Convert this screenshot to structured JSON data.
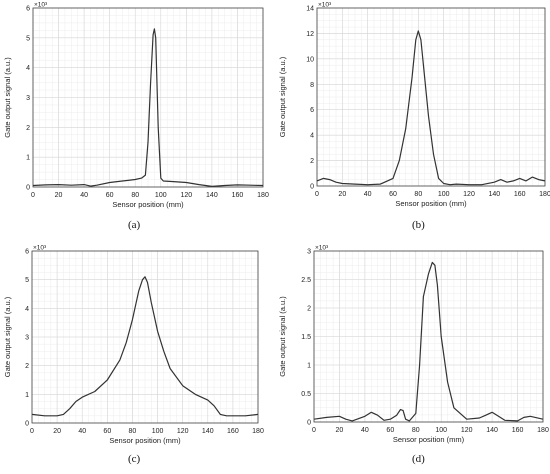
{
  "chart_data": [
    {
      "type": "line",
      "caption": "(a)",
      "xlabel": "Sensor position (mm)",
      "ylabel": "Gate output signal (a.u.)",
      "multiplier_label": "×10³",
      "xlim": [
        0,
        180
      ],
      "ylim": [
        0,
        6
      ],
      "xticks": [
        0,
        20,
        40,
        60,
        80,
        100,
        120,
        140,
        160,
        180
      ],
      "yticks": [
        0,
        1,
        2,
        3,
        4,
        5,
        6
      ],
      "grid": true,
      "series": [
        {
          "x": [
            0,
            10,
            20,
            30,
            40,
            45,
            50,
            60,
            70,
            80,
            85,
            88,
            90,
            92,
            94,
            95,
            96,
            98,
            100,
            102,
            110,
            120,
            130,
            135,
            140,
            150,
            160,
            170,
            180
          ],
          "y": [
            0.05,
            0.07,
            0.08,
            0.06,
            0.08,
            0.03,
            0.06,
            0.15,
            0.2,
            0.25,
            0.3,
            0.4,
            1.5,
            3.5,
            5.1,
            5.3,
            5.0,
            2.0,
            0.3,
            0.2,
            0.18,
            0.15,
            0.08,
            0.05,
            0.02,
            0.05,
            0.07,
            0.06,
            0.05
          ]
        }
      ]
    },
    {
      "type": "line",
      "caption": "(b)",
      "xlabel": "Sensor position (mm)",
      "ylabel": "Gate output signal (a.u.)",
      "multiplier_label": "×10³",
      "xlim": [
        0,
        180
      ],
      "ylim": [
        0,
        14
      ],
      "xticks": [
        0,
        20,
        40,
        60,
        80,
        100,
        120,
        140,
        160,
        180
      ],
      "yticks": [
        0,
        2,
        4,
        6,
        8,
        10,
        12,
        14
      ],
      "grid": true,
      "series": [
        {
          "x": [
            0,
            5,
            10,
            15,
            20,
            30,
            40,
            50,
            60,
            65,
            70,
            75,
            78,
            80,
            82,
            85,
            88,
            92,
            96,
            100,
            105,
            110,
            120,
            130,
            140,
            145,
            150,
            155,
            160,
            165,
            170,
            175,
            180
          ],
          "y": [
            0.4,
            0.6,
            0.5,
            0.3,
            0.2,
            0.15,
            0.1,
            0.15,
            0.6,
            2.0,
            4.5,
            8.5,
            11.5,
            12.2,
            11.5,
            8.5,
            5.5,
            2.5,
            0.6,
            0.2,
            0.1,
            0.15,
            0.1,
            0.1,
            0.3,
            0.5,
            0.3,
            0.4,
            0.6,
            0.4,
            0.7,
            0.5,
            0.4
          ]
        }
      ]
    },
    {
      "type": "line",
      "caption": "(c)",
      "xlabel": "Sensor position (mm)",
      "ylabel": "Gate output signal (a.u.)",
      "multiplier_label": "×10³",
      "xlim": [
        0,
        180
      ],
      "ylim": [
        0,
        6
      ],
      "xticks": [
        0,
        20,
        40,
        60,
        80,
        100,
        120,
        140,
        160,
        180
      ],
      "yticks": [
        0,
        1,
        2,
        3,
        4,
        5,
        6
      ],
      "grid": true,
      "series": [
        {
          "x": [
            0,
            10,
            20,
            25,
            30,
            35,
            40,
            50,
            60,
            70,
            75,
            80,
            85,
            88,
            90,
            92,
            95,
            100,
            105,
            110,
            120,
            130,
            140,
            145,
            150,
            155,
            160,
            170,
            180
          ],
          "y": [
            0.3,
            0.25,
            0.25,
            0.3,
            0.5,
            0.75,
            0.9,
            1.1,
            1.5,
            2.2,
            2.8,
            3.6,
            4.6,
            5.0,
            5.1,
            4.9,
            4.2,
            3.2,
            2.5,
            1.9,
            1.3,
            1.0,
            0.8,
            0.6,
            0.3,
            0.25,
            0.25,
            0.25,
            0.3
          ]
        }
      ]
    },
    {
      "type": "line",
      "caption": "(d)",
      "xlabel": "Sensor position (mm)",
      "ylabel": "Gate output signal (a.u.)",
      "multiplier_label": "×10³",
      "xlim": [
        0,
        180
      ],
      "ylim": [
        0,
        3
      ],
      "xticks": [
        0,
        20,
        40,
        60,
        80,
        100,
        120,
        140,
        160,
        180
      ],
      "yticks": [
        0,
        0.5,
        1,
        1.5,
        2,
        2.5,
        3
      ],
      "grid": true,
      "series": [
        {
          "x": [
            0,
            10,
            20,
            25,
            30,
            40,
            45,
            50,
            55,
            60,
            65,
            68,
            70,
            72,
            75,
            80,
            83,
            86,
            90,
            93,
            95,
            97,
            100,
            105,
            110,
            120,
            130,
            135,
            140,
            145,
            150,
            160,
            165,
            170,
            180
          ],
          "y": [
            0.05,
            0.08,
            0.1,
            0.05,
            0.02,
            0.1,
            0.17,
            0.12,
            0.03,
            0.05,
            0.12,
            0.22,
            0.2,
            0.05,
            0.02,
            0.15,
            1.0,
            2.2,
            2.6,
            2.8,
            2.75,
            2.4,
            1.5,
            0.7,
            0.25,
            0.05,
            0.07,
            0.12,
            0.17,
            0.1,
            0.03,
            0.02,
            0.08,
            0.1,
            0.05
          ]
        }
      ]
    }
  ]
}
